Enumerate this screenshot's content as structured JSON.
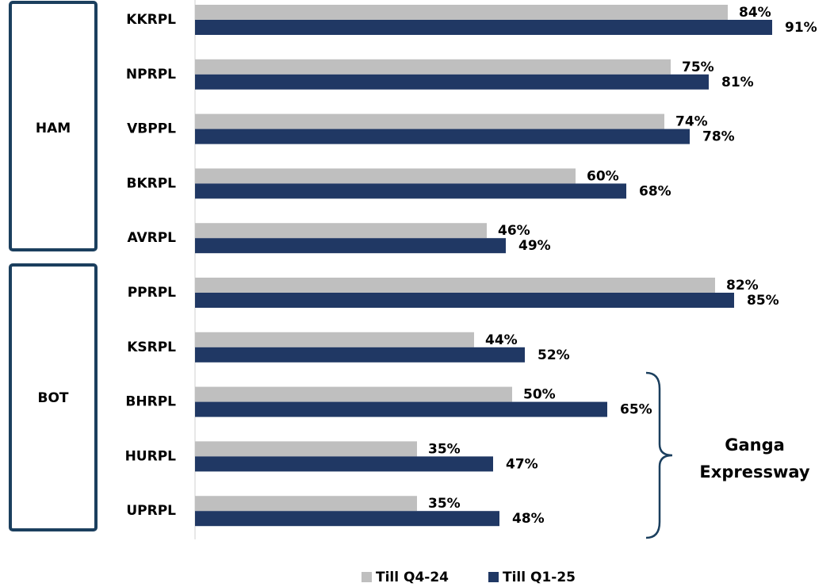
{
  "chart_data": {
    "type": "bar",
    "orientation": "horizontal",
    "categories": [
      "KKRPL",
      "NPRPL",
      "VBPPL",
      "BKRPL",
      "AVRPL",
      "PPRPL",
      "KSRPL",
      "BHRPL",
      "HURPL",
      "UPRPL"
    ],
    "series": [
      {
        "name": "Till Q4-24",
        "color": "#bfbfbf",
        "values": [
          84,
          75,
          74,
          60,
          46,
          82,
          44,
          50,
          35,
          35
        ],
        "value_labels": [
          "84%",
          "75%",
          "74%",
          "60%",
          "46%",
          "82%",
          "44%",
          "50%",
          "35%",
          "35%"
        ]
      },
      {
        "name": "Till Q1-25",
        "color": "#203864",
        "values": [
          91,
          81,
          78,
          68,
          49,
          85,
          52,
          65,
          47,
          48
        ],
        "value_labels": [
          "91%",
          "81%",
          "78%",
          "68%",
          "49%",
          "85%",
          "52%",
          "65%",
          "47%",
          "48%"
        ]
      }
    ],
    "xlim": [
      0,
      100
    ],
    "groups": [
      "HAM",
      "BOT"
    ],
    "annotation": "Ganga Expressway",
    "legend": "bottom"
  }
}
